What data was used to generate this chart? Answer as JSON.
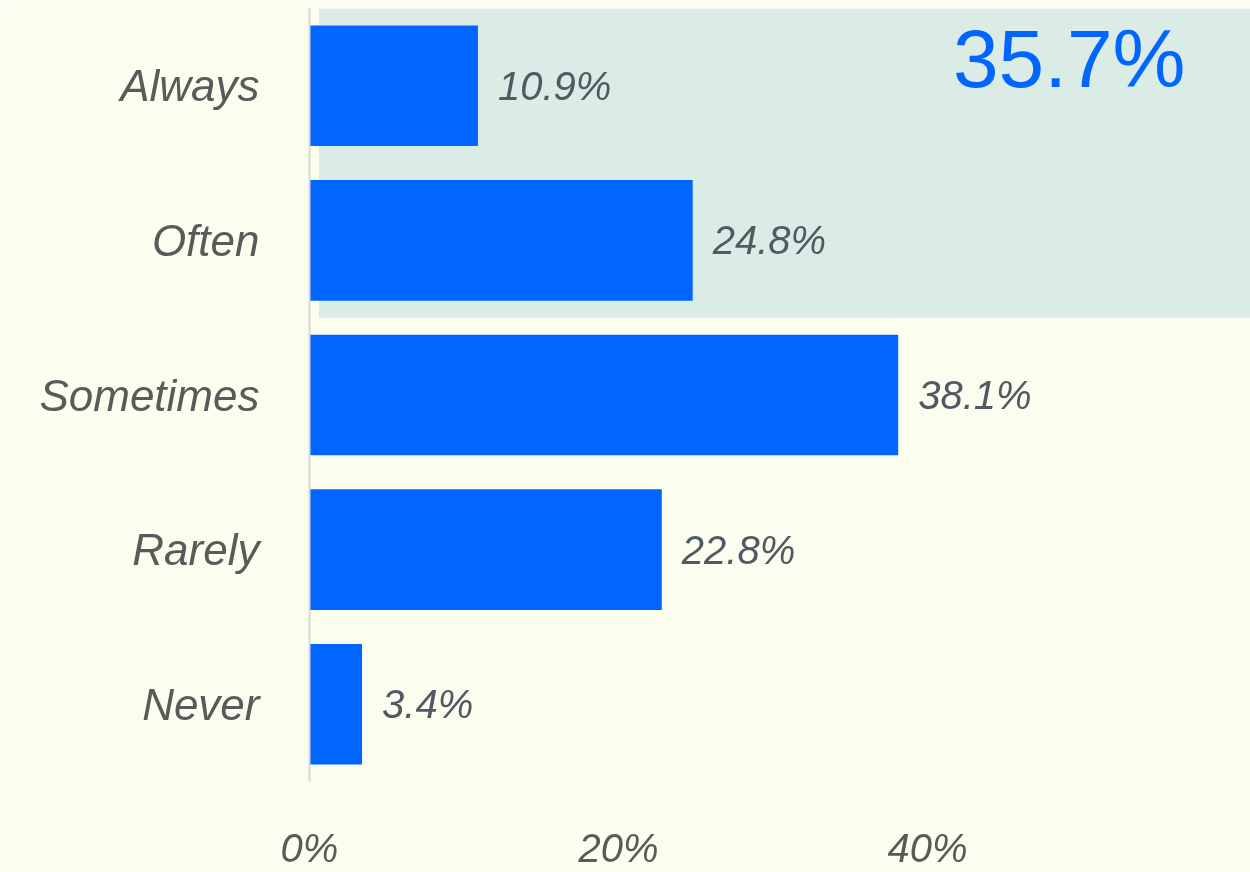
{
  "chart_data": {
    "type": "bar",
    "orientation": "horizontal",
    "categories": [
      "Always",
      "Often",
      "Sometimes",
      "Rarely",
      "Never"
    ],
    "values": [
      10.9,
      24.8,
      38.1,
      22.8,
      3.4
    ],
    "value_labels": [
      "10.9%",
      "24.8%",
      "38.1%",
      "22.8%",
      "3.4%"
    ],
    "color": "#0066ff",
    "xlim": [
      0,
      60.9
    ],
    "xticks": [
      {
        "value": 0,
        "label": "0%"
      },
      {
        "value": 20,
        "label": "20%"
      },
      {
        "value": 40,
        "label": "40%"
      }
    ],
    "bands": [
      {
        "axis": "y",
        "from": "Always",
        "to": "Often",
        "label": "35.7%",
        "color": "#dbece6"
      }
    ],
    "grid": false
  }
}
